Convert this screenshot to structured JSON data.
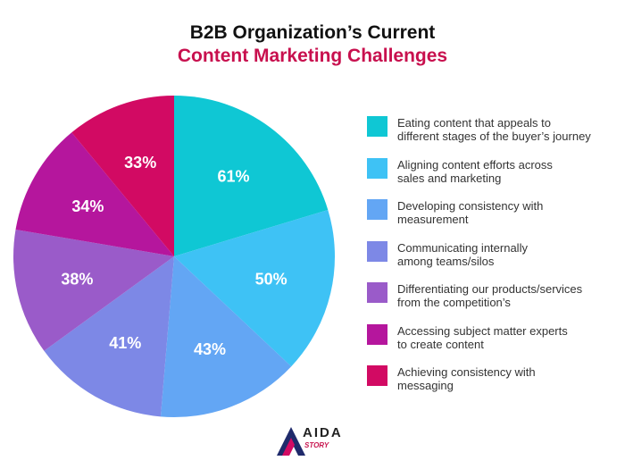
{
  "title_line1": "B2B Organization’s Current",
  "title_line2": "Content Marketing Challenges",
  "title_line2_color": "#c8104e",
  "chart_data": {
    "type": "pie",
    "title": "B2B Organization’s Current Content Marketing Challenges",
    "unit": "%",
    "slices": [
      {
        "label": "Eating content that appeals to\ndifferent stages of the buyer’s journey",
        "value": 61,
        "value_label": "61%",
        "color": "#0fc7d4"
      },
      {
        "label": "Aligning content efforts across\nsales and marketing",
        "value": 50,
        "value_label": "50%",
        "color": "#3ec2f5"
      },
      {
        "label": "Developing consistency with\nmeasurement",
        "value": 43,
        "value_label": "43%",
        "color": "#63a6f4"
      },
      {
        "label": "Communicating internally\namong teams/silos",
        "value": 41,
        "value_label": "41%",
        "color": "#7d88e6"
      },
      {
        "label": "Differentiating our products/services\nfrom the competition’s",
        "value": 38,
        "value_label": "38%",
        "color": "#9a5bc9"
      },
      {
        "label": "Accessing subject matter experts\nto create content",
        "value": 34,
        "value_label": "34%",
        "color": "#b5169d"
      },
      {
        "label": "Achieving  consistency with\nmessaging",
        "value": 33,
        "value_label": "33%",
        "color": "#d20a63"
      }
    ],
    "legend_position": "right"
  },
  "logo": {
    "name": "AIDA",
    "sub": "STORY"
  }
}
